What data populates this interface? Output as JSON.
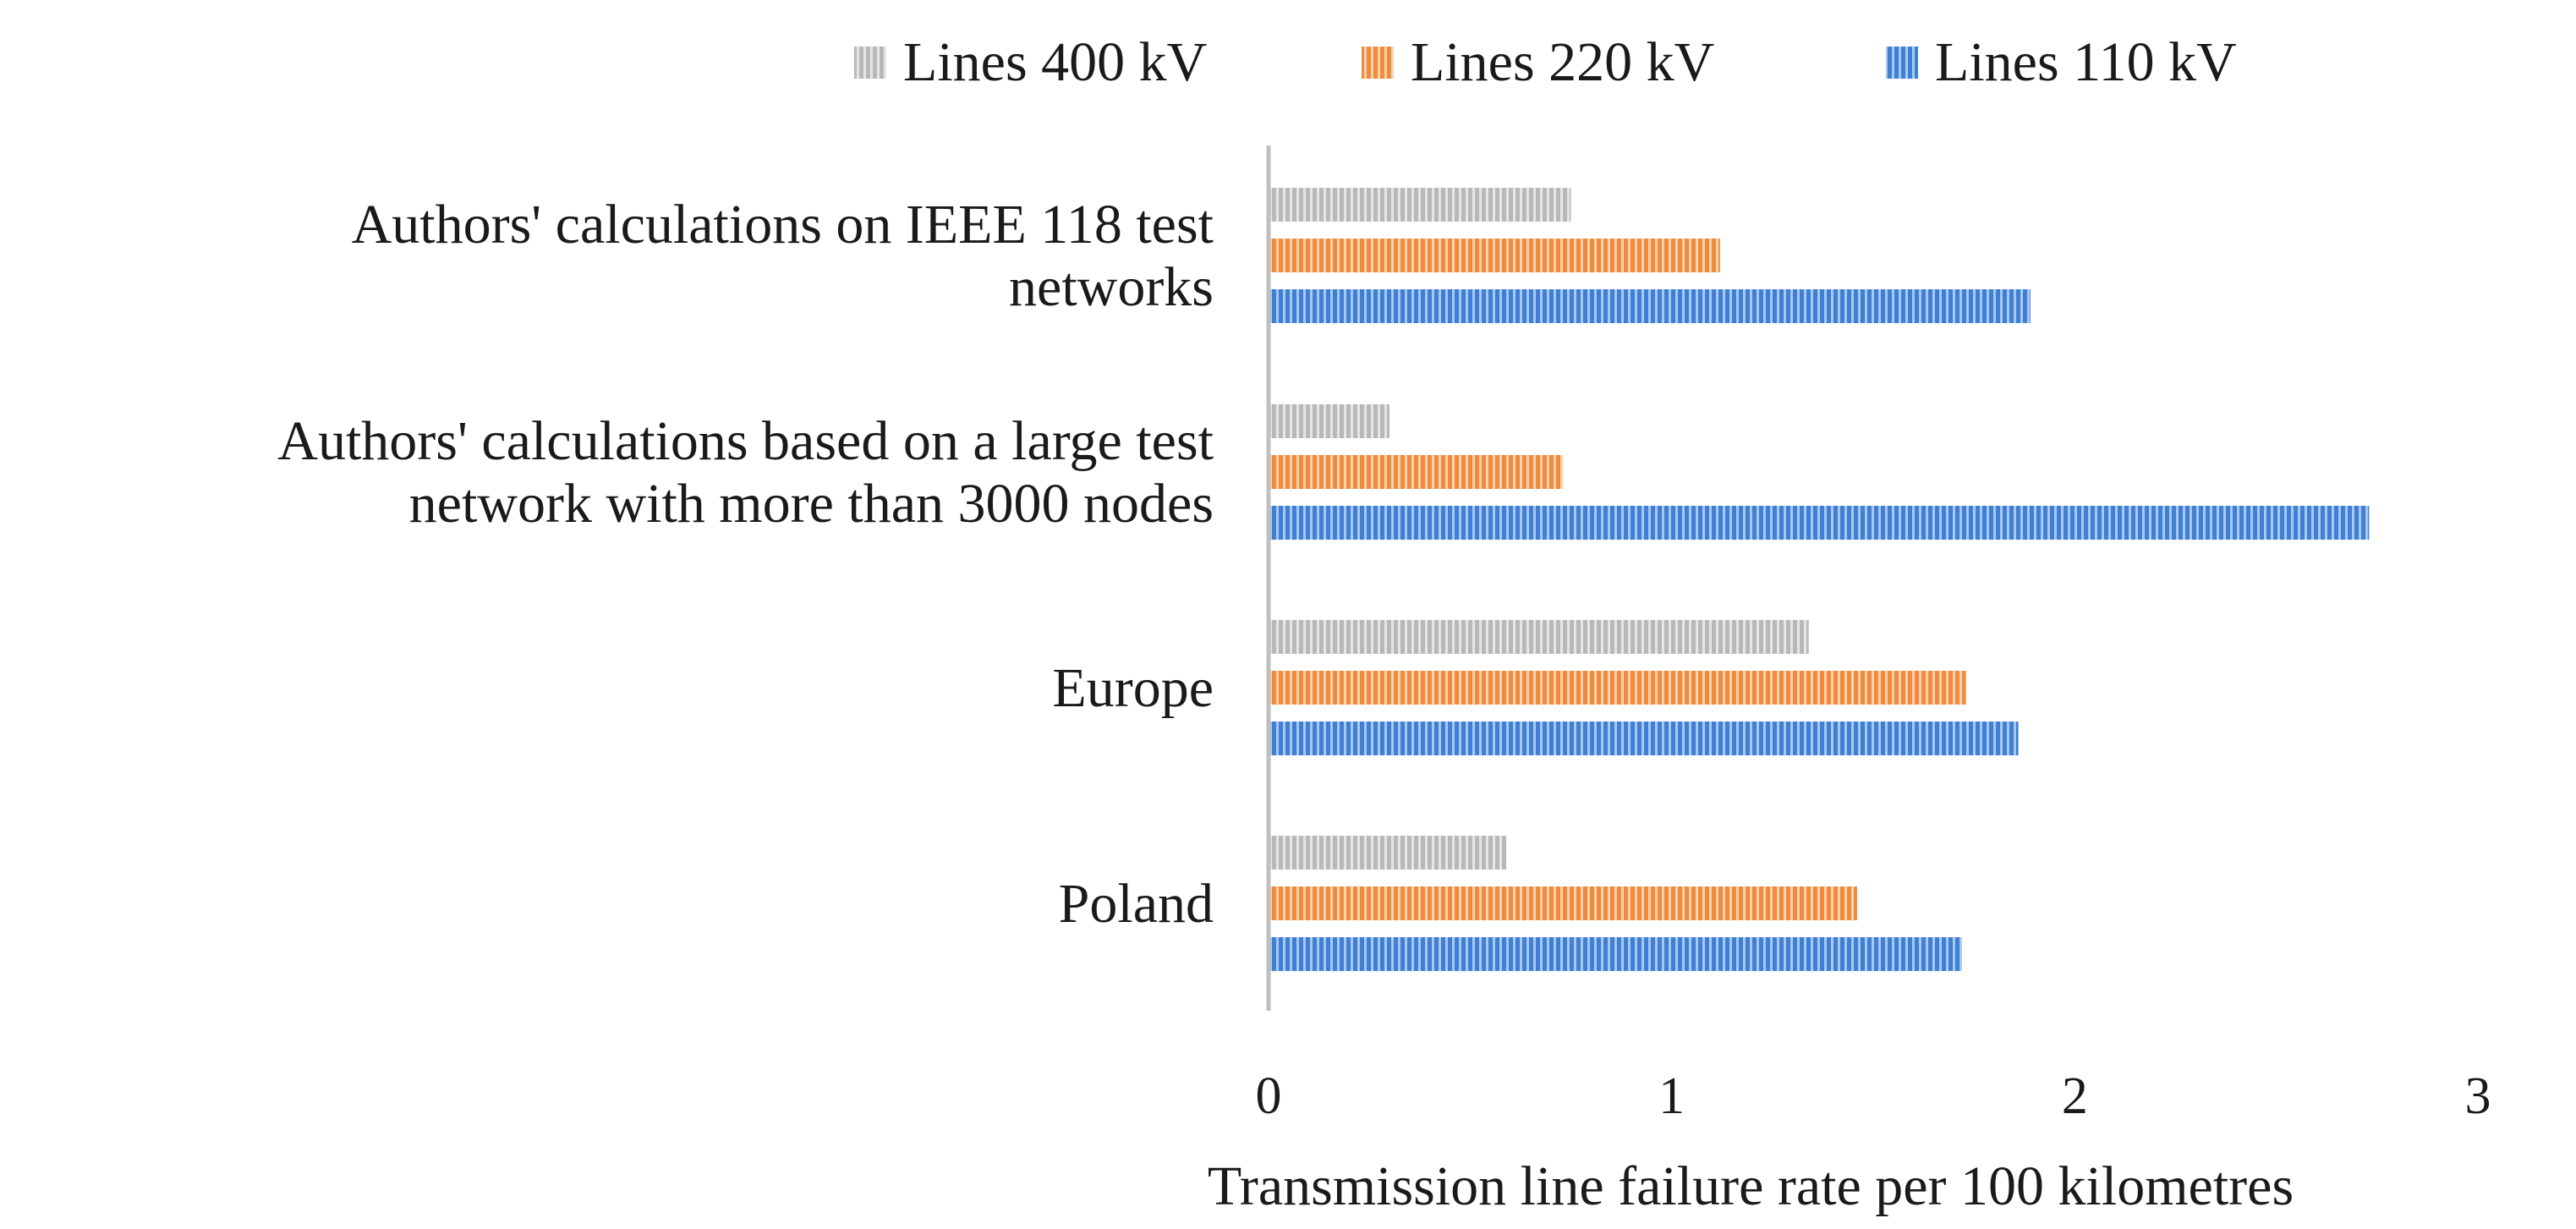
{
  "chart_data": {
    "type": "bar",
    "orientation": "horizontal",
    "categories": [
      [
        "Authors' calculations on IEEE 118 test",
        "networks"
      ],
      [
        "Authors' calculations based on a large test",
        "network with more than 3000 nodes"
      ],
      [
        "Europe"
      ],
      [
        "Poland"
      ]
    ],
    "series": [
      {
        "name": "Lines 400 kV",
        "color": "#b8b8b8",
        "values": [
          0.75,
          0.3,
          1.34,
          0.59
        ]
      },
      {
        "name": "Lines 220 kV",
        "color": "#f08a3c",
        "values": [
          1.12,
          0.73,
          1.73,
          1.46
        ]
      },
      {
        "name": "Lines 110 kV",
        "color": "#3f7fd4",
        "values": [
          1.89,
          2.73,
          1.86,
          1.72
        ]
      }
    ],
    "xlabel": "Transmission line failure rate per 100 kilometres",
    "xlim": [
      0,
      3
    ],
    "xticks": [
      0,
      1,
      2,
      3
    ],
    "grid": false,
    "legend_position": "top"
  }
}
